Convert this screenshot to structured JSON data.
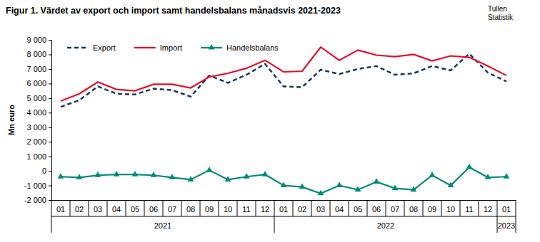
{
  "chart_data": {
    "type": "line",
    "title": "Figur 1. Värdet av export och import samt handelsbalans månadsvis 2021-2023",
    "source": [
      "Tullen",
      "Statistik"
    ],
    "y_label": "Mn euro",
    "categories": [
      "01",
      "02",
      "03",
      "04",
      "05",
      "06",
      "07",
      "08",
      "09",
      "10",
      "11",
      "12",
      "01",
      "02",
      "03",
      "04",
      "05",
      "06",
      "07",
      "08",
      "09",
      "10",
      "11",
      "12",
      "01"
    ],
    "x_groups": [
      {
        "label": "2021",
        "span": 12
      },
      {
        "label": "2022",
        "span": 12
      },
      {
        "label": "2023",
        "span": 1
      }
    ],
    "series": [
      {
        "name": "Export",
        "color": "#17375e",
        "line_style": "dashed",
        "marker": "none",
        "values": [
          4400,
          4850,
          5800,
          5300,
          5250,
          5650,
          5550,
          5100,
          6550,
          6050,
          6600,
          7350,
          5800,
          5750,
          6950,
          6650,
          7000,
          7200,
          6600,
          6700,
          7200,
          6900,
          8050,
          6750,
          6150
        ]
      },
      {
        "name": "Import",
        "color": "#e0102a",
        "line_style": "solid",
        "marker": "none",
        "values": [
          4800,
          5300,
          6100,
          5600,
          5500,
          5950,
          5950,
          5700,
          6450,
          6700,
          7050,
          7600,
          6800,
          6850,
          8500,
          7600,
          8300,
          7950,
          7850,
          8000,
          7550,
          7900,
          7800,
          7200,
          6550
        ]
      },
      {
        "name": "Handelsbalans",
        "color": "#008a76",
        "line_style": "solid",
        "marker": "triangle",
        "values": [
          -400,
          -450,
          -300,
          -250,
          -250,
          -300,
          -450,
          -600,
          50,
          -600,
          -400,
          -250,
          -1000,
          -1100,
          -1550,
          -1000,
          -1300,
          -750,
          -1200,
          -1300,
          -300,
          -1000,
          250,
          -450,
          -400
        ]
      }
    ],
    "ylim": [
      -2000,
      9000
    ],
    "yticks": [
      {
        "value": -2000,
        "label": "-2 000"
      },
      {
        "value": -1000,
        "label": "-1 000"
      },
      0,
      {
        "value": 1000,
        "label": "1 000"
      },
      {
        "value": 2000,
        "label": "2 000"
      },
      {
        "value": 3000,
        "label": "3 000"
      },
      {
        "value": 4000,
        "label": "4 000"
      },
      {
        "value": 5000,
        "label": "5 000"
      },
      {
        "value": 6000,
        "label": "6 000"
      },
      {
        "value": 7000,
        "label": "7 000"
      },
      {
        "value": 8000,
        "label": "8 000"
      },
      {
        "value": 9000,
        "label": "9 000"
      }
    ],
    "grid": false,
    "legend": "top-left"
  }
}
